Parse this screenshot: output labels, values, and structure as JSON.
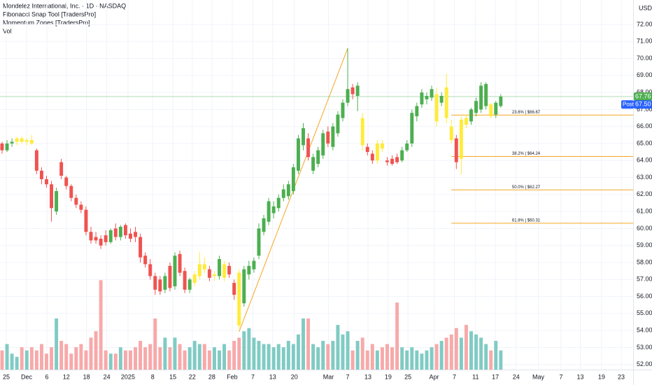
{
  "chart_data": {
    "type": "candlestick",
    "title": "Mondelez International, Inc. · 1D · NASDAQ",
    "indicators": [
      "Fibonacci Snap Tool [TradersPro]",
      "Momentum Zones [TradersPro]",
      "Vol"
    ],
    "currency": "USD",
    "open": [
      65.0,
      64.6,
      65.0,
      65.1,
      65.3,
      65.1,
      65.2,
      64.6,
      63.4,
      62.9,
      62.6,
      61.0,
      63.9,
      63.0,
      62.5,
      61.8,
      61.4,
      61.1,
      59.8,
      59.5,
      59.4,
      59.6,
      59.2,
      60.0,
      59.5,
      60.2,
      59.7,
      59.8,
      59.5,
      58.4,
      57.9,
      57.2,
      57.0,
      56.4,
      57.8,
      56.6,
      58.5,
      57.5,
      56.4,
      56.8,
      57.2,
      57.9,
      57.6,
      57.2,
      57.2,
      57.1,
      57.8,
      56.8,
      57.4,
      55.6,
      57.3,
      57.6,
      58.4,
      59.8,
      60.4,
      60.9,
      61.2,
      61.8,
      61.9,
      62.2,
      63.4,
      64.9,
      65.3,
      63.4,
      63.8,
      64.3,
      65.7,
      64.8,
      65.6,
      66.5,
      67.4,
      68.3,
      67.8,
      66.5,
      64.8,
      64.4,
      64.0,
      65.0,
      64.0,
      64.1,
      64.2,
      64.0,
      64.6,
      65.0,
      66.6,
      67.3,
      67.6,
      67.7,
      67.9,
      67.4,
      68.3,
      66.0,
      65.3,
      64.1,
      66.5,
      66.3,
      66.8,
      67.0,
      67.2,
      67.3,
      66.7,
      67.2
    ],
    "high": [
      65.1,
      65.2,
      65.3,
      65.4,
      65.4,
      65.3,
      65.5,
      64.7,
      63.6,
      63.1,
      62.8,
      62.4,
      64.1,
      63.1,
      62.6,
      62.0,
      61.6,
      61.3,
      60.1,
      59.8,
      59.6,
      59.9,
      60.0,
      60.3,
      60.2,
      60.3,
      60.0,
      60.1,
      59.7,
      58.6,
      58.2,
      57.4,
      57.2,
      57.4,
      58.0,
      58.6,
      58.7,
      57.7,
      57.1,
      57.5,
      58.6,
      58.3,
      57.8,
      57.5,
      58.4,
      58.1,
      58.0,
      57.0,
      57.6,
      57.8,
      58.1,
      58.3,
      60.3,
      60.8,
      61.8,
      61.6,
      62.0,
      62.6,
      62.8,
      63.8,
      65.5,
      66.2,
      65.6,
      64.4,
      64.8,
      65.8,
      66.0,
      66.2,
      66.9,
      67.6,
      70.6,
      68.5,
      68.6,
      66.8,
      65.0,
      64.6,
      65.2,
      65.2,
      64.2,
      64.3,
      64.4,
      64.8,
      65.2,
      67.0,
      67.4,
      68.2,
      68.0,
      68.4,
      68.3,
      68.0,
      69.1,
      66.4,
      65.5,
      66.6,
      66.7,
      67.1,
      67.7,
      68.6,
      68.6,
      67.4,
      67.5,
      67.9
    ],
    "low": [
      64.4,
      64.5,
      64.8,
      64.9,
      65.0,
      64.9,
      64.9,
      63.2,
      62.6,
      62.4,
      60.4,
      60.8,
      62.9,
      62.3,
      61.6,
      61.2,
      60.9,
      59.6,
      59.1,
      59.1,
      58.8,
      59.0,
      59.1,
      59.3,
      59.3,
      59.4,
      59.2,
      59.2,
      58.0,
      57.7,
      57.0,
      56.1,
      56.1,
      56.2,
      56.3,
      56.4,
      57.2,
      56.2,
      56.2,
      56.6,
      57.0,
      57.4,
      56.9,
      56.9,
      57.0,
      56.9,
      57.1,
      55.8,
      54.1,
      55.4,
      57.0,
      57.4,
      58.2,
      59.6,
      60.2,
      60.6,
      61.0,
      61.6,
      61.7,
      62.0,
      63.2,
      64.6,
      64.0,
      63.2,
      63.6,
      64.1,
      64.8,
      64.6,
      65.4,
      66.3,
      67.2,
      67.6,
      66.9,
      64.6,
      64.3,
      63.8,
      63.8,
      64.5,
      63.7,
      63.7,
      63.8,
      63.9,
      64.5,
      64.8,
      66.3,
      67.1,
      67.3,
      67.5,
      66.0,
      67.2,
      66.2,
      65.0,
      63.5,
      63.2,
      65.9,
      66.1,
      66.6,
      66.8,
      67.0,
      66.5,
      66.5,
      67.1
    ],
    "close": [
      64.6,
      65.0,
      65.1,
      65.3,
      65.1,
      65.2,
      65.0,
      63.4,
      62.9,
      62.6,
      61.2,
      62.2,
      63.1,
      62.5,
      61.8,
      61.4,
      61.1,
      59.8,
      59.3,
      59.3,
      59.0,
      59.2,
      59.9,
      59.5,
      60.1,
      59.6,
      59.4,
      59.5,
      58.3,
      57.9,
      57.2,
      56.4,
      56.3,
      57.2,
      56.5,
      58.4,
      57.4,
      56.4,
      57.0,
      57.3,
      57.9,
      57.6,
      57.1,
      57.3,
      58.2,
      57.9,
      57.3,
      56.1,
      54.3,
      57.6,
      57.8,
      58.1,
      60.0,
      60.6,
      61.6,
      61.3,
      61.8,
      62.3,
      62.6,
      63.6,
      65.3,
      65.9,
      64.2,
      64.2,
      64.6,
      65.6,
      65.0,
      66.0,
      66.7,
      67.4,
      68.2,
      67.9,
      68.4,
      64.9,
      64.5,
      64.0,
      65.0,
      64.7,
      63.9,
      63.8,
      63.9,
      64.6,
      65.0,
      66.8,
      67.2,
      68.0,
      67.8,
      68.2,
      66.3,
      67.8,
      66.5,
      65.2,
      63.9,
      66.4,
      66.1,
      67.0,
      67.5,
      68.4,
      68.5,
      66.6,
      67.4,
      67.76
    ],
    "colors": [
      "#ef5350",
      "#4caf50",
      "#4caf50",
      "#ffeb3b",
      "#ffeb3b",
      "#ffeb3b",
      "#ffeb3b",
      "#ef5350",
      "#ef5350",
      "#ef5350",
      "#ef5350",
      "#4caf50",
      "#ef5350",
      "#ef5350",
      "#ef5350",
      "#ef5350",
      "#ef5350",
      "#ef5350",
      "#ef5350",
      "#ef5350",
      "#ef5350",
      "#ef5350",
      "#4caf50",
      "#ef5350",
      "#4caf50",
      "#ef5350",
      "#ef5350",
      "#ef5350",
      "#ef5350",
      "#ef5350",
      "#ef5350",
      "#ef5350",
      "#ef5350",
      "#4caf50",
      "#ef5350",
      "#4caf50",
      "#ef5350",
      "#ef5350",
      "#4caf50",
      "#ffeb3b",
      "#ffeb3b",
      "#ffeb3b",
      "#ef5350",
      "#ffeb3b",
      "#4caf50",
      "#ffeb3b",
      "#ef5350",
      "#ef5350",
      "#ffeb3b",
      "#4caf50",
      "#4caf50",
      "#4caf50",
      "#4caf50",
      "#4caf50",
      "#4caf50",
      "#4caf50",
      "#4caf50",
      "#4caf50",
      "#4caf50",
      "#4caf50",
      "#4caf50",
      "#4caf50",
      "#ef5350",
      "#4caf50",
      "#4caf50",
      "#4caf50",
      "#ef5350",
      "#4caf50",
      "#4caf50",
      "#4caf50",
      "#4caf50",
      "#ef5350",
      "#4caf50",
      "#ffeb3b",
      "#ef5350",
      "#ef5350",
      "#ffeb3b",
      "#ffeb3b",
      "#ef5350",
      "#ef5350",
      "#ef5350",
      "#4caf50",
      "#4caf50",
      "#4caf50",
      "#4caf50",
      "#4caf50",
      "#4caf50",
      "#4caf50",
      "#ffeb3b",
      "#4caf50",
      "#ffeb3b",
      "#ffeb3b",
      "#ef5350",
      "#ffeb3b",
      "#ffeb3b",
      "#4caf50",
      "#4caf50",
      "#4caf50",
      "#4caf50",
      "#ffeb3b",
      "#4caf50",
      "#4caf50"
    ],
    "volume": [
      6,
      8,
      5,
      4,
      7,
      6,
      7,
      6,
      8,
      5,
      7,
      16,
      9,
      8,
      5,
      7,
      8,
      6,
      10,
      12,
      28,
      6,
      5,
      5,
      7,
      6,
      6,
      7,
      9,
      7,
      8,
      16,
      7,
      10,
      7,
      10,
      8,
      6,
      7,
      9,
      8,
      8,
      6,
      7,
      6,
      8,
      6,
      9,
      10,
      12,
      13,
      10,
      9,
      8,
      8,
      7,
      8,
      7,
      9,
      8,
      11,
      16,
      16,
      8,
      7,
      9,
      8,
      9,
      14,
      11,
      12,
      6,
      9,
      10,
      6,
      8,
      6,
      7,
      8,
      7,
      21,
      7,
      6,
      7,
      6,
      5,
      6,
      7,
      8,
      9,
      10,
      11,
      13,
      10,
      14,
      12,
      11,
      10,
      8,
      6,
      9,
      6
    ],
    "volume_colors": {
      "up": "#80cbc4",
      "down": "#f7a9a9"
    },
    "vlim": [
      0,
      32
    ],
    "xlim": [
      -0.42,
      127.8
    ],
    "ylim": [
      51.7,
      73.44
    ],
    "xticks": [
      {
        "value": 0.85,
        "label": "25"
      },
      {
        "value": 4.96,
        "label": "Dec"
      },
      {
        "value": 9.07,
        "label": "6"
      },
      {
        "value": 13.0,
        "label": "12"
      },
      {
        "value": 17.1,
        "label": "18"
      },
      {
        "value": 21.2,
        "label": "24"
      },
      {
        "value": 25.5,
        "label": "2025"
      },
      {
        "value": 30.5,
        "label": "8"
      },
      {
        "value": 34.6,
        "label": "15"
      },
      {
        "value": 38.5,
        "label": "22"
      },
      {
        "value": 42.5,
        "label": "28"
      },
      {
        "value": 46.6,
        "label": "Feb"
      },
      {
        "value": 50.8,
        "label": "7"
      },
      {
        "value": 54.8,
        "label": "13"
      },
      {
        "value": 59.2,
        "label": "20"
      },
      {
        "value": 66.1,
        "label": "Mar"
      },
      {
        "value": 70.0,
        "label": "7"
      },
      {
        "value": 74.1,
        "label": "13"
      },
      {
        "value": 78.2,
        "label": "19"
      },
      {
        "value": 82.2,
        "label": "25"
      },
      {
        "value": 87.5,
        "label": "Apr"
      },
      {
        "value": 91.6,
        "label": "7"
      },
      {
        "value": 95.9,
        "label": "11"
      },
      {
        "value": 99.9,
        "label": "17"
      },
      {
        "value": 104.1,
        "label": "24"
      },
      {
        "value": 108.6,
        "label": "May"
      },
      {
        "value": 113.2,
        "label": "7"
      },
      {
        "value": 117.1,
        "label": "13"
      },
      {
        "value": 121.4,
        "label": "19"
      },
      {
        "value": 125.4,
        "label": "23"
      }
    ],
    "yticks": [
      {
        "value": 52,
        "label": "52.00"
      },
      {
        "value": 53,
        "label": "53.00"
      },
      {
        "value": 54,
        "label": "54.00"
      },
      {
        "value": 55,
        "label": "55.00"
      },
      {
        "value": 56,
        "label": "56.00"
      },
      {
        "value": 57,
        "label": "57.00"
      },
      {
        "value": 58,
        "label": "58.00"
      },
      {
        "value": 59,
        "label": "59.00"
      },
      {
        "value": 60,
        "label": "60.00"
      },
      {
        "value": 61,
        "label": "61.00"
      },
      {
        "value": 62,
        "label": "62.00"
      },
      {
        "value": 63,
        "label": "63.00"
      },
      {
        "value": 64,
        "label": "64.00"
      },
      {
        "value": 65,
        "label": "65.00"
      },
      {
        "value": 66,
        "label": "66.00"
      },
      {
        "value": 67,
        "label": "67.00"
      },
      {
        "value": 68,
        "label": "68.00"
      },
      {
        "value": 69,
        "label": "69.00"
      },
      {
        "value": 70,
        "label": "70.00"
      },
      {
        "value": 71,
        "label": "71.00"
      },
      {
        "value": 72,
        "label": "72.00"
      }
    ],
    "grid": true,
    "fib": {
      "color": "#f5a623",
      "x_start": 91,
      "swing_x": [
        48,
        70
      ],
      "swing_y": [
        53.93,
        70.6
      ],
      "levels": [
        {
          "value": 66.67,
          "label": "23.6% | $66.67"
        },
        {
          "value": 64.24,
          "label": "38.2% | $64.24"
        },
        {
          "value": 62.27,
          "label": "50.0% | $62.27"
        },
        {
          "value": 60.31,
          "label": "61.8% | $60.31"
        }
      ]
    },
    "last_price": 67.76,
    "post_label": "Post",
    "post_price": {
      "value": 67.5,
      "label": "67.50"
    }
  }
}
